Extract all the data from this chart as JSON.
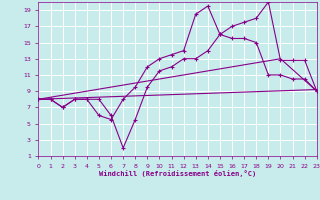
{
  "title": "",
  "xlabel": "Windchill (Refroidissement éolien,°C)",
  "background_color": "#c8ecec",
  "grid_color": "#ffffff",
  "line_color": "#880088",
  "xlim": [
    0,
    23
  ],
  "ylim": [
    1,
    20
  ],
  "xticks": [
    0,
    1,
    2,
    3,
    4,
    5,
    6,
    7,
    8,
    9,
    10,
    11,
    12,
    13,
    14,
    15,
    16,
    17,
    18,
    19,
    20,
    21,
    22,
    23
  ],
  "yticks": [
    1,
    3,
    5,
    7,
    9,
    11,
    13,
    15,
    17,
    19
  ],
  "line1_x": [
    0,
    1,
    2,
    3,
    4,
    5,
    6,
    7,
    8,
    9,
    10,
    11,
    12,
    13,
    14,
    15,
    16,
    17,
    18,
    19,
    20,
    21,
    22,
    23
  ],
  "line1_y": [
    8,
    8,
    7,
    8,
    8,
    8,
    6,
    2,
    5.5,
    9.5,
    11.5,
    12,
    13,
    13,
    14,
    16,
    17,
    17.5,
    18,
    20,
    12.8,
    12.8,
    12.8,
    9
  ],
  "line2_x": [
    0,
    1,
    2,
    3,
    4,
    5,
    6,
    7,
    8,
    9,
    10,
    11,
    12,
    13,
    14,
    15,
    16,
    17,
    18,
    19,
    20,
    21,
    22,
    23
  ],
  "line2_y": [
    8,
    8,
    7,
    8,
    8,
    6,
    5.5,
    8,
    9.5,
    12,
    13,
    13.5,
    14,
    18.5,
    19.5,
    16,
    15.5,
    15.5,
    15,
    11,
    11,
    10.5,
    10.5,
    9
  ],
  "line3_x": [
    0,
    23
  ],
  "line3_y": [
    8,
    9.2
  ],
  "line4_x": [
    0,
    20,
    23
  ],
  "line4_y": [
    8,
    13,
    9
  ]
}
